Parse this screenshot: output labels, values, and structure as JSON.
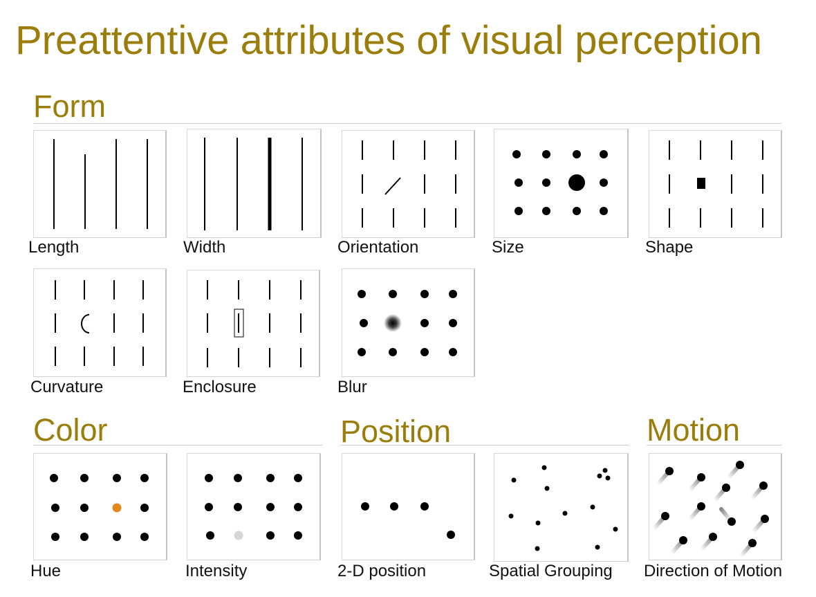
{
  "title": "Preattentive attributes of visual perception",
  "sections": {
    "form": "Form",
    "color": "Color",
    "position": "Position",
    "motion": "Motion"
  },
  "labels": {
    "length": "Length",
    "width": "Width",
    "orientation": "Orientation",
    "size": "Size",
    "shape": "Shape",
    "curvature": "Curvature",
    "enclosure": "Enclosure",
    "blur": "Blur",
    "hue": "Hue",
    "intensity": "Intensity",
    "position_2d": "2-D position",
    "spatial_grouping": "Spatial Grouping",
    "direction_of_motion": "Direction of Motion"
  },
  "colors": {
    "accent": "#9a7d0a",
    "mark": "#000000",
    "hue_highlight": "#e08a1e",
    "intensity_highlight": "#d6d6d6"
  }
}
